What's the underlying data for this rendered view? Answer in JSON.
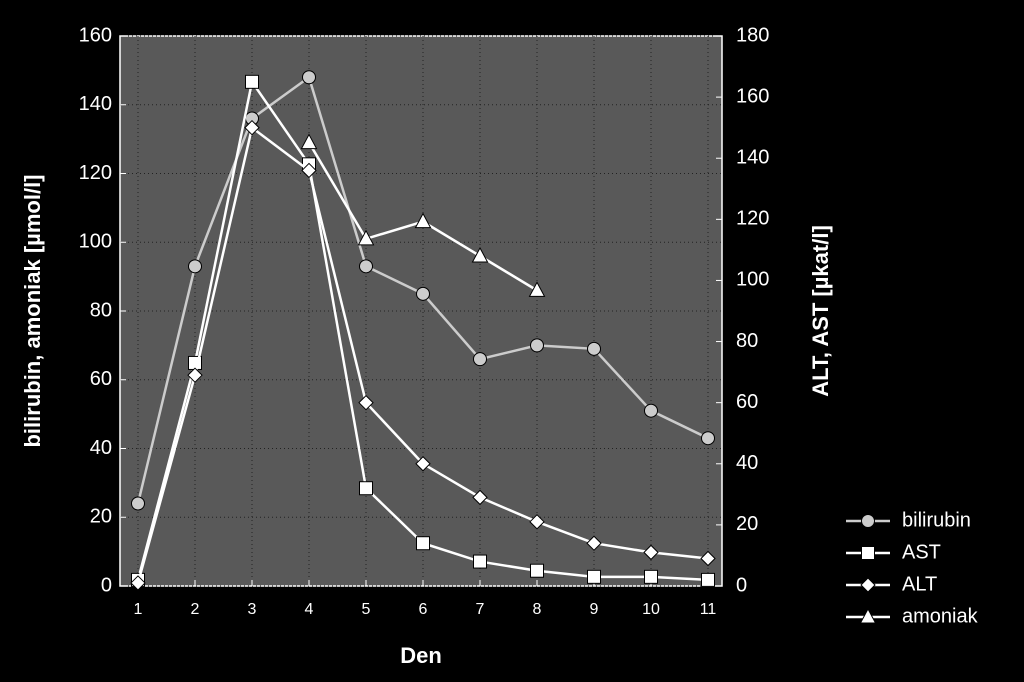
{
  "chart_data": {
    "type": "line",
    "x_label": "Den",
    "y_label": "bilirubin, amoniak [µmol/l]",
    "y2_label": "ALT, AST [µkat/l]",
    "categories": [
      "1",
      "2",
      "3",
      "4",
      "5",
      "6",
      "7",
      "8",
      "9",
      "10",
      "11"
    ],
    "ylim": [
      0,
      160
    ],
    "yticks": [
      0,
      20,
      40,
      60,
      80,
      100,
      120,
      140,
      160
    ],
    "y2lim": [
      0,
      180
    ],
    "y2ticks": [
      0,
      20,
      40,
      60,
      80,
      100,
      120,
      140,
      160,
      180
    ],
    "grid": true,
    "legend": "bottom-right",
    "series": [
      {
        "name": "bilirubin",
        "color": "#cccccc",
        "marker": "circle",
        "values": [
          24,
          93,
          136,
          148,
          93,
          85,
          66,
          70,
          69,
          51,
          43
        ]
      },
      {
        "name": "AST",
        "color": "#ffffff",
        "marker": "square",
        "axis": "y2",
        "values": [
          2,
          73,
          165,
          138,
          32,
          14,
          8,
          5,
          3,
          3,
          2
        ]
      },
      {
        "name": "ALT",
        "color": "#ffffff",
        "marker": "diamond",
        "axis": "y2",
        "values": [
          1,
          69,
          150,
          136,
          60,
          40,
          29,
          21,
          14,
          11,
          9
        ]
      },
      {
        "name": "amoniak",
        "color": "#ffffff",
        "marker": "triangle",
        "values": [
          null,
          null,
          null,
          129,
          101,
          106,
          96,
          86,
          null,
          null,
          null
        ]
      }
    ]
  }
}
